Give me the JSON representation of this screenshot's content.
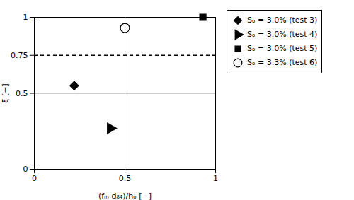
{
  "chart_data": {
    "type": "scatter",
    "xlabel": "(fₘ d₈₄)/hₒ [−]",
    "ylabel": "ξ [−]",
    "xlim": [
      0,
      1
    ],
    "ylim": [
      0,
      1
    ],
    "xticks": [
      0,
      0.5,
      1
    ],
    "yticks": [
      0,
      0.5,
      0.75,
      1
    ],
    "legend": "right",
    "series": [
      {
        "name": "Sₒ = 3.0% (test 3)",
        "color": "black",
        "marker": "diamond",
        "x": [
          0.22
        ],
        "values": [
          0.55
        ]
      },
      {
        "name": "Sₒ = 3.0% (test 4)",
        "color": "black",
        "marker": "triangle_right",
        "x": [
          0.42
        ],
        "values": [
          0.27
        ]
      },
      {
        "name": "Sₒ = 3.0% (test 5)",
        "color": "black",
        "marker": "square",
        "x": [
          0.93
        ],
        "values": [
          1.0
        ]
      },
      {
        "name": "Sₒ = 3.3% (test 6)",
        "color": "black",
        "marker": "open_circle",
        "x": [
          0.5
        ],
        "values": [
          0.93
        ]
      }
    ],
    "lines": [
      {
        "y": 0.75,
        "color": "black",
        "line_style": "dashed"
      },
      {
        "x": 0.5,
        "color": "gray",
        "line_style": "solid"
      },
      {
        "y": 0.5,
        "color": "gray",
        "line_style": "solid"
      }
    ]
  }
}
